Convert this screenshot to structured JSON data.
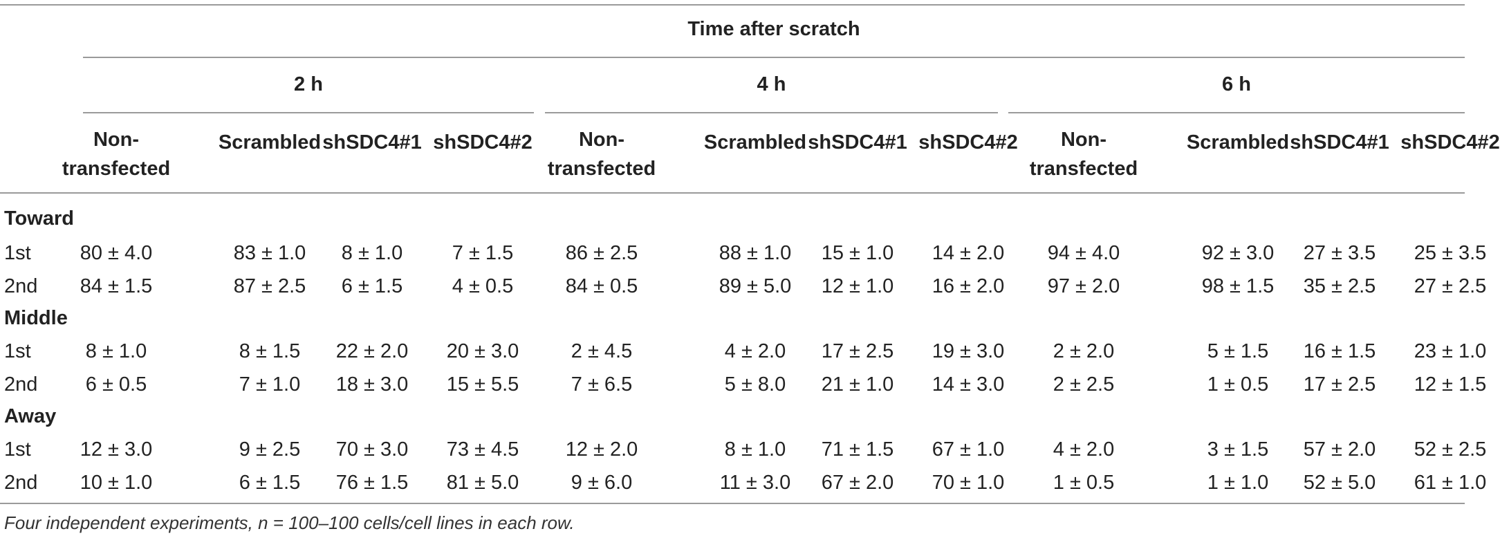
{
  "table": {
    "spanner": "Time after scratch",
    "time_groups": [
      "2 h",
      "4 h",
      "6 h"
    ],
    "columns": [
      [
        "Non-",
        "transfected"
      ],
      [
        "Scrambled"
      ],
      [
        "shSDC4#1"
      ],
      [
        "shSDC4#2"
      ]
    ],
    "sections": [
      {
        "label": "Toward",
        "rows": [
          {
            "label": "1st",
            "values": [
              "80 ± 4.0",
              "83 ± 1.0",
              "8 ± 1.0",
              "7 ± 1.5",
              "86 ± 2.5",
              "88 ± 1.0",
              "15 ± 1.0",
              "14 ± 2.0",
              "94 ± 4.0",
              "92 ± 3.0",
              "27 ± 3.5",
              "25 ± 3.5"
            ]
          },
          {
            "label": "2nd",
            "values": [
              "84 ± 1.5",
              "87 ± 2.5",
              "6 ± 1.5",
              "4 ± 0.5",
              "84 ± 0.5",
              "89 ± 5.0",
              "12 ± 1.0",
              "16 ± 2.0",
              "97 ± 2.0",
              "98 ± 1.5",
              "35 ± 2.5",
              "27 ± 2.5"
            ]
          }
        ]
      },
      {
        "label": "Middle",
        "rows": [
          {
            "label": "1st",
            "values": [
              "8 ± 1.0",
              "8 ± 1.5",
              "22 ± 2.0",
              "20 ± 3.0",
              "2 ± 4.5",
              "4 ± 2.0",
              "17 ± 2.5",
              "19 ± 3.0",
              "2 ± 2.0",
              "5 ± 1.5",
              "16 ± 1.5",
              "23 ± 1.0"
            ]
          },
          {
            "label": "2nd",
            "values": [
              "6 ± 0.5",
              "7 ± 1.0",
              "18 ± 3.0",
              "15 ± 5.5",
              "7 ± 6.5",
              "5 ± 8.0",
              "21 ± 1.0",
              "14 ± 3.0",
              "2 ± 2.5",
              "1 ± 0.5",
              "17 ± 2.5",
              "12 ± 1.5"
            ]
          }
        ]
      },
      {
        "label": "Away",
        "rows": [
          {
            "label": "1st",
            "values": [
              "12 ± 3.0",
              "9 ± 2.5",
              "70 ± 3.0",
              "73 ± 4.5",
              "12 ± 2.0",
              "8 ± 1.0",
              "71 ± 1.5",
              "67 ± 1.0",
              "4 ± 2.0",
              "3 ± 1.5",
              "57 ± 2.0",
              "52 ± 2.5"
            ]
          },
          {
            "label": "2nd",
            "values": [
              "10 ± 1.0",
              "6 ± 1.5",
              "76 ± 1.5",
              "81 ± 5.0",
              "9 ± 6.0",
              "11 ± 3.0",
              "67 ± 2.0",
              "70 ± 1.0",
              "1 ± 0.5",
              "1 ± 1.0",
              "52 ± 5.0",
              "61 ± 1.0"
            ]
          }
        ]
      }
    ],
    "footnote": "Four independent experiments, n = 100–100 cells/cell lines in each row."
  }
}
